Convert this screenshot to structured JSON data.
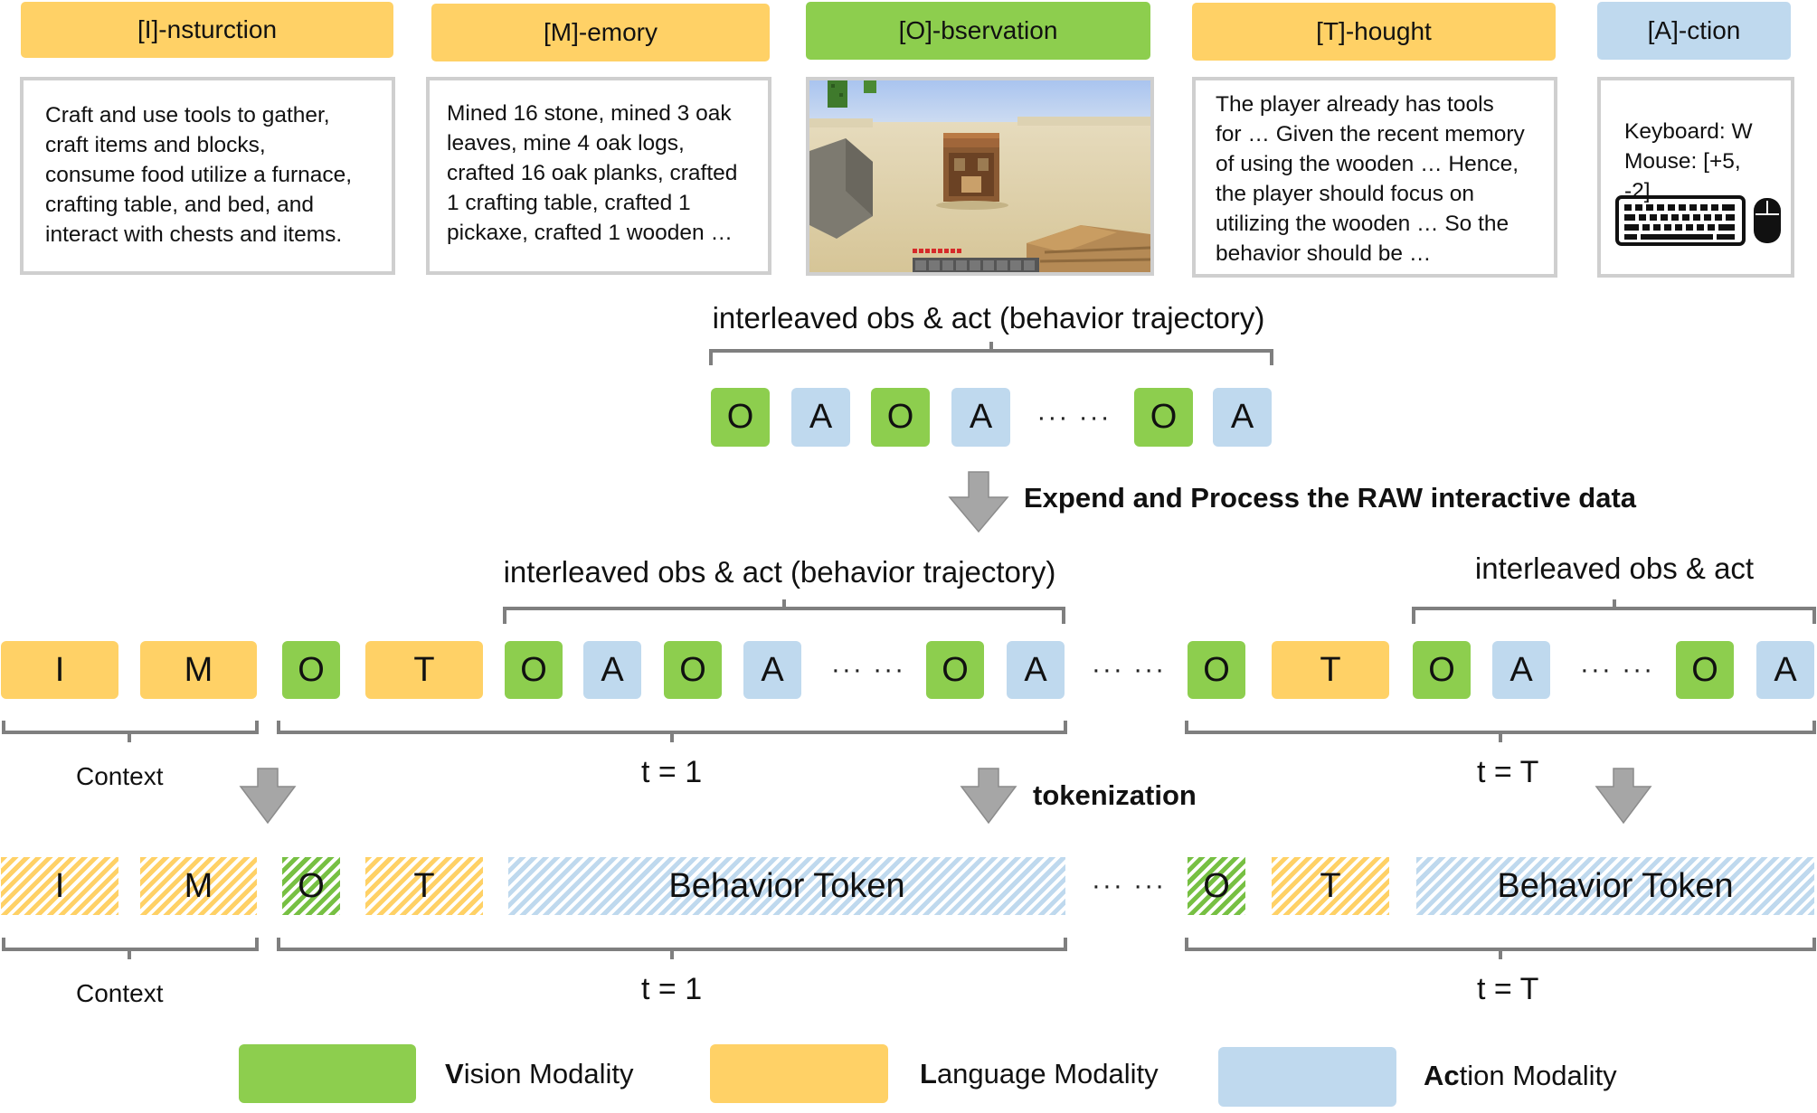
{
  "headers": {
    "instruction": "[I]-nsturction",
    "memory": "[M]-emory",
    "observation": "[O]-bservation",
    "thought": "[T]-hought",
    "action": "[A]-ction"
  },
  "panels": {
    "instruction_lines": [
      "Craft and use tools to gather,",
      "craft items and blocks,",
      "consume food utilize a furnace,",
      "crafting table, and bed, and",
      "interact with chests and items."
    ],
    "memory_lines": [
      "Mined 16 stone,  mined 3 oak",
      "leaves,  mine 4 oak logs,",
      "crafted 16 oak planks,  crafted",
      "1 crafting table, crafted 1",
      "pickaxe, crafted 1 wooden …"
    ],
    "thought_lines": [
      "The player already has tools",
      "for … Given the recent memory",
      "of using the wooden … Hence,",
      "the player should focus on",
      "utilizing the wooden … So the",
      "behavior should be …"
    ],
    "action_lines": [
      "Keyboard: W",
      "Mouse: [+5, -2]"
    ]
  },
  "tokens": {
    "I": "I",
    "M": "M",
    "O": "O",
    "T": "T",
    "A": "A",
    "dots": "··· ···",
    "behavior": "Behavior Token"
  },
  "labels": {
    "top_traj": "interleaved obs & act (behavior trajectory)",
    "expand": "Expend and Process the RAW interactive data",
    "mid_traj": "interleaved obs & act (behavior trajectory)",
    "right_traj": "interleaved obs & act",
    "context": "Context",
    "t1": "t = 1",
    "tT": "t = T",
    "tokenization": "tokenization"
  },
  "legend": {
    "vision_bold": "V",
    "vision_rest": "ision Modality",
    "language_bold": "L",
    "language_rest": "anguage Modality",
    "action_bold": "Ac",
    "action_rest": "tion Modality"
  },
  "colors": {
    "language": "#FFD166",
    "vision": "#8DCE4E",
    "action": "#BFD9EE",
    "bracket": "#7f7f7f",
    "arrow": "#a6a6a6"
  }
}
